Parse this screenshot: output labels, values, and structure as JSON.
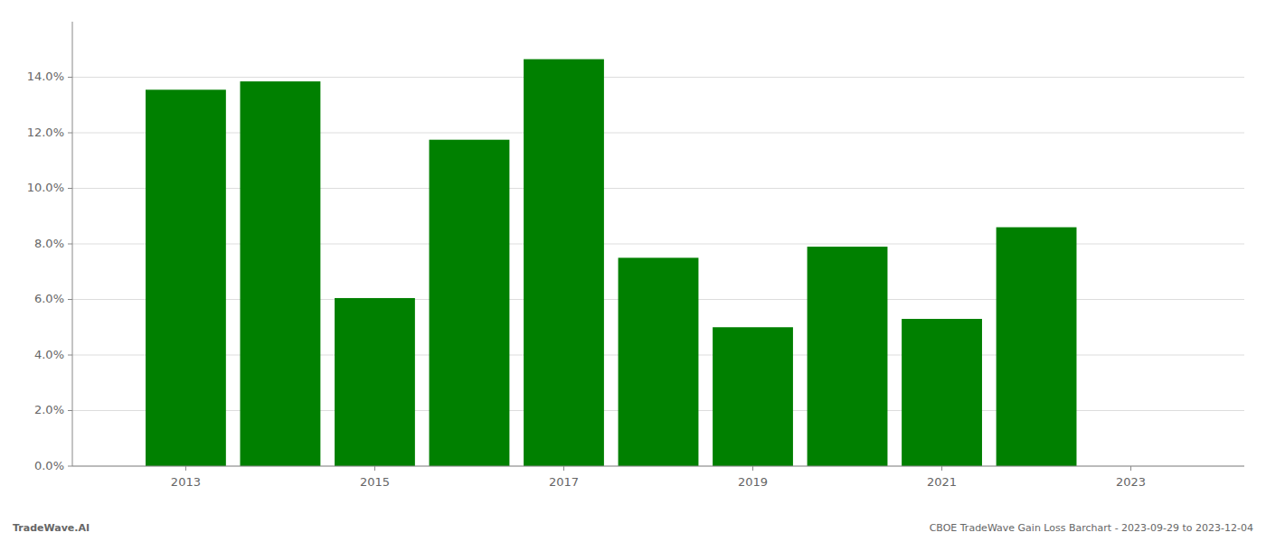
{
  "chart_data": {
    "type": "bar",
    "x": [
      2013,
      2014,
      2015,
      2016,
      2017,
      2018,
      2019,
      2020,
      2021,
      2022,
      2023
    ],
    "values": [
      0.1355,
      0.1385,
      0.0605,
      0.1175,
      0.1465,
      0.075,
      0.05,
      0.079,
      0.053,
      0.086,
      null
    ],
    "color": "#008000",
    "xlim": [
      2011.8,
      2024.2
    ],
    "xticks": [
      2013,
      2015,
      2017,
      2019,
      2021,
      2023
    ],
    "ylim": [
      0,
      0.16
    ],
    "yticks": [
      {
        "value": 0.0,
        "label": "0.0%"
      },
      {
        "value": 0.02,
        "label": "2.0%"
      },
      {
        "value": 0.04,
        "label": "4.0%"
      },
      {
        "value": 0.06,
        "label": "6.0%"
      },
      {
        "value": 0.08,
        "label": "8.0%"
      },
      {
        "value": 0.1,
        "label": "10.0%"
      },
      {
        "value": 0.12,
        "label": "12.0%"
      },
      {
        "value": 0.14,
        "label": "14.0%"
      }
    ],
    "grid": true,
    "annotations": [
      "TradeWave.AI",
      "CBOE TradeWave Gain Loss Barchart - 2023-09-29 to 2023-12-04"
    ]
  }
}
